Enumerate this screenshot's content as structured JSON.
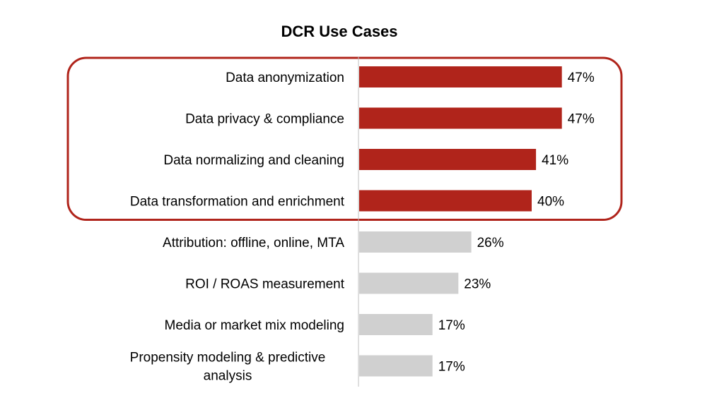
{
  "chart_data": {
    "type": "bar",
    "orientation": "horizontal",
    "title": "DCR Use Cases",
    "xlabel": "",
    "ylabel": "",
    "value_suffix": "%",
    "xlim": [
      0,
      55
    ],
    "grid": false,
    "legend": "none",
    "categories": [
      "Data anonymization",
      "Data privacy & compliance",
      "Data normalizing and cleaning",
      "Data transformation and enrichment",
      "Attribution: offline, online, MTA",
      "ROI / ROAS measurement",
      "Media or market mix modeling",
      "Propensity modeling & predictive analysis"
    ],
    "values": [
      47,
      47,
      41,
      40,
      26,
      23,
      17,
      17
    ],
    "highlighted": [
      true,
      true,
      true,
      true,
      false,
      false,
      false,
      false
    ],
    "colors": {
      "highlight_bar": "#B0241B",
      "default_bar": "#D0D0D0",
      "highlight_outline": "#B0241B",
      "axis": "#BFBFBF",
      "text": "#000000"
    }
  }
}
